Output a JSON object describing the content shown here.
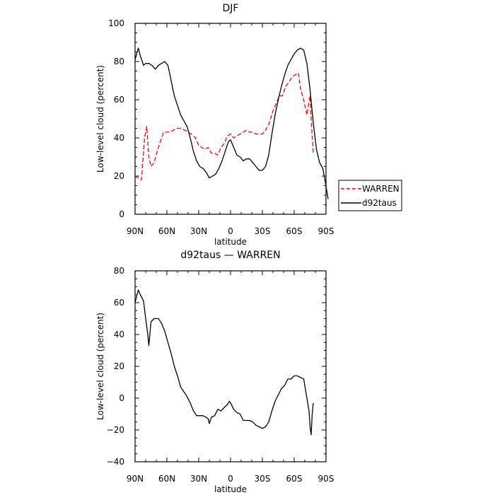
{
  "chart_data": [
    {
      "type": "line",
      "title": "DJF",
      "xlabel": "latitude",
      "ylabel": "Low-level cloud (percent)",
      "xlim": [
        90,
        -90
      ],
      "ylim": [
        0,
        100
      ],
      "x_ticks": [
        90,
        60,
        30,
        0,
        -30,
        -60,
        -90
      ],
      "x_tick_labels": [
        "90N",
        "60N",
        "30N",
        "0",
        "30S",
        "60S",
        "90S"
      ],
      "y_ticks": [
        0,
        20,
        40,
        60,
        80,
        100
      ],
      "y_tick_labels": [
        "0",
        "20",
        "40",
        "60",
        "80",
        "100"
      ],
      "legend_position": "right",
      "series": [
        {
          "name": "WARREN",
          "color": "#ff0000",
          "dash": "dashed",
          "points": [
            [
              90,
              20
            ],
            [
              84,
              18
            ],
            [
              81,
              40
            ],
            [
              79,
              46
            ],
            [
              77,
              30
            ],
            [
              75,
              25
            ],
            [
              72,
              27
            ],
            [
              68,
              35
            ],
            [
              63,
              43
            ],
            [
              59,
              43
            ],
            [
              57,
              43
            ],
            [
              54,
              44
            ],
            [
              51,
              45
            ],
            [
              47,
              45
            ],
            [
              43,
              44
            ],
            [
              40,
              43
            ],
            [
              37,
              42
            ],
            [
              33,
              40
            ],
            [
              30,
              36
            ],
            [
              27,
              35
            ],
            [
              24,
              34
            ],
            [
              21,
              35
            ],
            [
              18,
              32
            ],
            [
              15,
              32
            ],
            [
              12,
              31
            ],
            [
              9,
              35
            ],
            [
              6,
              37
            ],
            [
              3,
              41
            ],
            [
              0,
              42
            ],
            [
              -3,
              40
            ],
            [
              -6,
              41
            ],
            [
              -9,
              42
            ],
            [
              -12,
              43
            ],
            [
              -15,
              44
            ],
            [
              -18,
              43
            ],
            [
              -21,
              43
            ],
            [
              -24,
              42
            ],
            [
              -27,
              42
            ],
            [
              -30,
              42
            ],
            [
              -33,
              44
            ],
            [
              -36,
              47
            ],
            [
              -40,
              54
            ],
            [
              -43,
              58
            ],
            [
              -46,
              62
            ],
            [
              -49,
              62
            ],
            [
              -52,
              67
            ],
            [
              -55,
              69
            ],
            [
              -58,
              72
            ],
            [
              -61,
              73
            ],
            [
              -64,
              74
            ],
            [
              -66,
              66
            ],
            [
              -69,
              60
            ],
            [
              -72,
              52
            ],
            [
              -74,
              59
            ],
            [
              -75,
              62
            ],
            [
              -76,
              50
            ],
            [
              -78,
              32
            ]
          ]
        },
        {
          "name": "d92taus",
          "color": "#000000",
          "dash": "solid",
          "points": [
            [
              90,
              81
            ],
            [
              87,
              87
            ],
            [
              85,
              83
            ],
            [
              82,
              78
            ],
            [
              80,
              79
            ],
            [
              77,
              79
            ],
            [
              74,
              78
            ],
            [
              71,
              76
            ],
            [
              68,
              78
            ],
            [
              65,
              79
            ],
            [
              62,
              80
            ],
            [
              59,
              78
            ],
            [
              56,
              70
            ],
            [
              53,
              62
            ],
            [
              50,
              57
            ],
            [
              47,
              52
            ],
            [
              44,
              49
            ],
            [
              41,
              46
            ],
            [
              38,
              40
            ],
            [
              35,
              33
            ],
            [
              32,
              28
            ],
            [
              29,
              25
            ],
            [
              26,
              24
            ],
            [
              23,
              22
            ],
            [
              20,
              19
            ],
            [
              17,
              20
            ],
            [
              14,
              21
            ],
            [
              11,
              24
            ],
            [
              8,
              28
            ],
            [
              5,
              33
            ],
            [
              2,
              38
            ],
            [
              0,
              39
            ],
            [
              -3,
              35
            ],
            [
              -6,
              31
            ],
            [
              -9,
              30
            ],
            [
              -12,
              28
            ],
            [
              -15,
              29
            ],
            [
              -18,
              29
            ],
            [
              -21,
              27
            ],
            [
              -24,
              25
            ],
            [
              -27,
              23
            ],
            [
              -30,
              23
            ],
            [
              -33,
              25
            ],
            [
              -36,
              31
            ],
            [
              -39,
              42
            ],
            [
              -42,
              52
            ],
            [
              -45,
              60
            ],
            [
              -48,
              67
            ],
            [
              -51,
              73
            ],
            [
              -54,
              78
            ],
            [
              -57,
              81
            ],
            [
              -60,
              84
            ],
            [
              -63,
              86
            ],
            [
              -66,
              87
            ],
            [
              -69,
              86
            ],
            [
              -72,
              79
            ],
            [
              -75,
              65
            ],
            [
              -78,
              48
            ],
            [
              -81,
              34
            ],
            [
              -84,
              27
            ],
            [
              -87,
              24
            ],
            [
              -89,
              18
            ],
            [
              -92,
              8
            ]
          ]
        }
      ]
    },
    {
      "type": "line",
      "title": "d92taus — WARREN",
      "xlabel": "latitude",
      "ylabel": "Low-level cloud (percent)",
      "xlim": [
        90,
        -90
      ],
      "ylim": [
        -40,
        80
      ],
      "x_ticks": [
        90,
        60,
        30,
        0,
        -30,
        -60,
        -90
      ],
      "x_tick_labels": [
        "90N",
        "60N",
        "30N",
        "0",
        "30S",
        "60S",
        "90S"
      ],
      "y_ticks": [
        -40,
        -20,
        0,
        20,
        40,
        60,
        80
      ],
      "y_tick_labels": [
        "−40",
        "−20",
        "0",
        "20",
        "40",
        "60",
        "80"
      ],
      "series": [
        {
          "name": "",
          "color": "#000000",
          "dash": "solid",
          "points": [
            [
              90,
              60
            ],
            [
              87,
              68
            ],
            [
              85,
              65
            ],
            [
              82,
              61
            ],
            [
              80,
              50
            ],
            [
              78,
              40
            ],
            [
              77,
              33
            ],
            [
              75,
              48
            ],
            [
              72,
              50
            ],
            [
              68,
              50
            ],
            [
              65,
              47
            ],
            [
              62,
              42
            ],
            [
              59,
              35
            ],
            [
              56,
              28
            ],
            [
              53,
              20
            ],
            [
              50,
              14
            ],
            [
              47,
              7
            ],
            [
              44,
              4
            ],
            [
              41,
              1
            ],
            [
              38,
              -3
            ],
            [
              35,
              -8
            ],
            [
              32,
              -11
            ],
            [
              29,
              -11
            ],
            [
              26,
              -11
            ],
            [
              23,
              -12
            ],
            [
              21,
              -13
            ],
            [
              20,
              -16
            ],
            [
              18,
              -12
            ],
            [
              15,
              -11
            ],
            [
              12,
              -7
            ],
            [
              9,
              -8
            ],
            [
              6,
              -6
            ],
            [
              3,
              -4
            ],
            [
              1,
              -2
            ],
            [
              0,
              -3
            ],
            [
              -3,
              -7
            ],
            [
              -6,
              -9
            ],
            [
              -9,
              -10
            ],
            [
              -12,
              -14
            ],
            [
              -15,
              -14
            ],
            [
              -18,
              -14
            ],
            [
              -21,
              -15
            ],
            [
              -24,
              -17
            ],
            [
              -27,
              -18
            ],
            [
              -30,
              -19
            ],
            [
              -33,
              -18
            ],
            [
              -36,
              -15
            ],
            [
              -39,
              -8
            ],
            [
              -42,
              -2
            ],
            [
              -45,
              2
            ],
            [
              -48,
              6
            ],
            [
              -51,
              8
            ],
            [
              -54,
              12
            ],
            [
              -57,
              12
            ],
            [
              -60,
              14
            ],
            [
              -63,
              14
            ],
            [
              -66,
              13
            ],
            [
              -69,
              12
            ],
            [
              -72,
              0
            ],
            [
              -74,
              -8
            ],
            [
              -75,
              -18
            ],
            [
              -76,
              -23
            ],
            [
              -77,
              -10
            ],
            [
              -78,
              -3
            ]
          ]
        }
      ]
    }
  ]
}
